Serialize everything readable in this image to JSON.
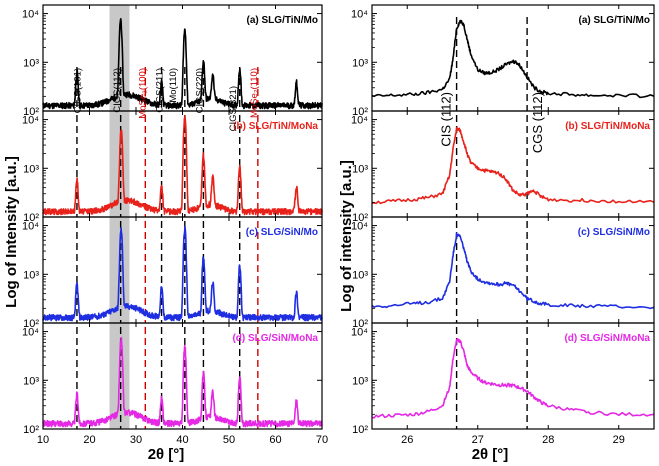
{
  "chart_data": [
    {
      "type": "line",
      "name": "left-xrd-full",
      "xlabel": "2θ [°]",
      "ylabel": "Log of Intensity [a.u.]",
      "xlim": [
        10,
        70
      ],
      "xticks": [
        "10",
        "20",
        "30",
        "40",
        "50",
        "60",
        "70"
      ],
      "xtick_values": [
        10,
        20,
        30,
        40,
        50,
        60,
        70
      ],
      "ylim_log": [
        100,
        15000
      ],
      "yticks": [
        "10²",
        "10³",
        "10⁴"
      ],
      "ytick_values": [
        100,
        1000,
        10000
      ],
      "shaded_band": [
        24.3,
        28.6
      ],
      "reference_lines": [
        {
          "x": 17.3,
          "color": "#000000"
        },
        {
          "x": 26.7,
          "color": "#000000"
        },
        {
          "x": 32.0,
          "color": "#d40000"
        },
        {
          "x": 35.5,
          "color": "#000000"
        },
        {
          "x": 40.5,
          "color": "#000000"
        },
        {
          "x": 44.5,
          "color": "#000000"
        },
        {
          "x": 52.3,
          "color": "#000000"
        },
        {
          "x": 56.2,
          "color": "#d40000"
        }
      ],
      "peak_annotations": [
        {
          "text": "CIGS(101)",
          "x": 17.3,
          "color": "#000000"
        },
        {
          "text": "CIGS(112)",
          "x": 25.8,
          "color": "#000000"
        },
        {
          "text": "MoSe₂(100)",
          "x": 31.3,
          "color": "#d40000"
        },
        {
          "text": "CIGS(211)",
          "x": 34.9,
          "color": "#000000"
        },
        {
          "text": "Mo(110)",
          "x": 37.8,
          "color": "#000000"
        },
        {
          "text": "CIGS(220)",
          "x": 43.6,
          "color": "#000000"
        },
        {
          "text": "CIGS(321)",
          "x": 50.8,
          "color": "#000000"
        },
        {
          "text": "MoSe₂(110)",
          "x": 55.3,
          "color": "#d40000"
        }
      ],
      "series": [
        {
          "name": "(a) SLG/TiN/Mo",
          "color": "#000000",
          "peaks": [
            [
              17.3,
              500
            ],
            [
              26.7,
              7500
            ],
            [
              35.5,
              250
            ],
            [
              40.5,
              4500
            ],
            [
              44.5,
              900
            ],
            [
              46.5,
              400
            ],
            [
              52.3,
              600
            ],
            [
              64.5,
              260
            ]
          ]
        },
        {
          "name": "(b) SLG/TiN/MoNa",
          "color": "#e8221b",
          "peaks": [
            [
              17.3,
              450
            ],
            [
              26.8,
              6000
            ],
            [
              35.5,
              280
            ],
            [
              40.5,
              11000
            ],
            [
              44.5,
              1700
            ],
            [
              46.5,
              500
            ],
            [
              52.3,
              900
            ],
            [
              64.5,
              280
            ]
          ]
        },
        {
          "name": "(c) SLG/SiN/Mo",
          "color": "#1f2ee0",
          "peaks": [
            [
              17.3,
              500
            ],
            [
              26.8,
              8000
            ],
            [
              35.5,
              400
            ],
            [
              40.5,
              8500
            ],
            [
              44.5,
              2100
            ],
            [
              46.5,
              500
            ],
            [
              52.3,
              1300
            ],
            [
              64.5,
              300
            ]
          ]
        },
        {
          "name": "(d) SLG/SiN/MoNa",
          "color": "#e428e4",
          "peaks": [
            [
              17.3,
              400
            ],
            [
              26.8,
              7000
            ],
            [
              35.5,
              300
            ],
            [
              40.5,
              4500
            ],
            [
              44.5,
              1200
            ],
            [
              46.5,
              400
            ],
            [
              52.3,
              1000
            ],
            [
              64.5,
              260
            ]
          ]
        }
      ]
    },
    {
      "type": "line",
      "name": "right-xrd-zoom",
      "xlabel": "2θ [°]",
      "ylabel": "Log of intensity [a.u.]",
      "xlim": [
        25.5,
        29.5
      ],
      "xticks": [
        "26",
        "27",
        "28",
        "29"
      ],
      "xtick_values": [
        26,
        27,
        28,
        29
      ],
      "ylim_log": [
        100,
        15000
      ],
      "yticks": [
        "10²",
        "10³",
        "10⁴"
      ],
      "ytick_values": [
        100,
        1000,
        10000
      ],
      "reference_lines": [
        {
          "x": 26.7,
          "color": "#000000"
        },
        {
          "x": 27.7,
          "color": "#000000"
        }
      ],
      "peak_annotations": [
        {
          "text": "CIS (112)",
          "x": 26.55,
          "color": "#000000"
        },
        {
          "text": "CGS (112)",
          "x": 27.85,
          "color": "#000000"
        }
      ],
      "series": [
        {
          "name": "(a) SLG/TiN/Mo",
          "color": "#000000",
          "x": [
            25.5,
            25.8,
            26.1,
            26.3,
            26.5,
            26.6,
            26.65,
            26.7,
            26.75,
            26.8,
            26.85,
            26.9,
            27.0,
            27.1,
            27.2,
            27.3,
            27.4,
            27.5,
            27.55,
            27.6,
            27.7,
            27.8,
            27.9,
            28.0,
            28.3,
            28.6,
            29.0,
            29.5
          ],
          "y": [
            200,
            210,
            220,
            240,
            280,
            450,
            1200,
            5000,
            7000,
            6000,
            3000,
            1500,
            700,
            600,
            620,
            720,
            900,
            1050,
            1000,
            850,
            500,
            300,
            250,
            230,
            220,
            210,
            210,
            200
          ]
        },
        {
          "name": "(b) SLG/TiN/MoNa",
          "color": "#e8221b",
          "x": [
            25.5,
            25.8,
            26.1,
            26.3,
            26.5,
            26.6,
            26.65,
            26.7,
            26.75,
            26.8,
            26.85,
            26.9,
            27.0,
            27.1,
            27.2,
            27.3,
            27.4,
            27.5,
            27.6,
            27.7,
            27.8,
            27.9,
            28.0,
            28.3,
            28.6,
            29.0,
            29.5
          ],
          "y": [
            200,
            210,
            230,
            250,
            300,
            700,
            2500,
            6500,
            6000,
            3500,
            2000,
            1300,
            1000,
            900,
            850,
            800,
            600,
            350,
            280,
            300,
            350,
            260,
            230,
            220,
            220,
            210,
            200
          ]
        },
        {
          "name": "(c) SLG/SiN/Mo",
          "color": "#1f2ee0",
          "x": [
            25.5,
            25.8,
            26.1,
            26.3,
            26.5,
            26.6,
            26.65,
            26.7,
            26.75,
            26.8,
            26.85,
            26.9,
            27.0,
            27.1,
            27.2,
            27.3,
            27.4,
            27.5,
            27.6,
            27.7,
            27.8,
            27.9,
            28.0,
            28.3,
            28.6,
            29.0,
            29.5
          ],
          "y": [
            220,
            230,
            250,
            270,
            320,
            700,
            2500,
            6500,
            6000,
            3500,
            1800,
            1200,
            800,
            700,
            650,
            620,
            650,
            600,
            450,
            320,
            280,
            250,
            240,
            230,
            220,
            220,
            210
          ]
        },
        {
          "name": "(d) SLG/SiN/MoNa",
          "color": "#e428e4",
          "x": [
            25.5,
            25.8,
            26.1,
            26.3,
            26.5,
            26.6,
            26.65,
            26.7,
            26.75,
            26.8,
            26.85,
            26.9,
            27.0,
            27.1,
            27.2,
            27.3,
            27.4,
            27.5,
            27.6,
            27.7,
            27.8,
            27.9,
            28.0,
            28.3,
            28.6,
            29.0,
            29.5
          ],
          "y": [
            180,
            190,
            200,
            230,
            300,
            700,
            2800,
            6500,
            6500,
            4000,
            2000,
            1500,
            1100,
            900,
            850,
            800,
            800,
            780,
            700,
            600,
            450,
            350,
            300,
            250,
            220,
            200,
            200
          ]
        }
      ]
    }
  ]
}
